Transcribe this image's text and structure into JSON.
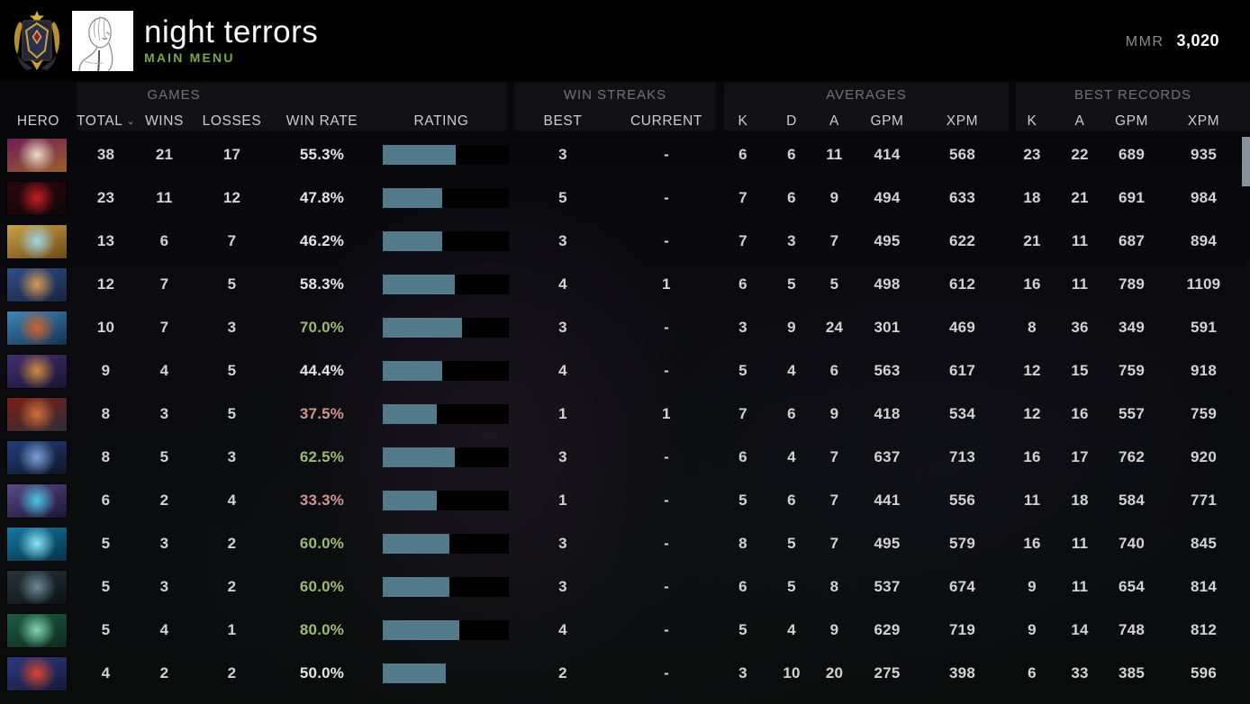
{
  "header": {
    "title": "night terrors",
    "subtitle": "MAIN MENU",
    "mmr_label": "MMR",
    "mmr_value": "3,020"
  },
  "colors": {
    "accent_green": "#78a83e",
    "win_rate_positive": "#9cba77",
    "win_rate_negative": "#cf9490",
    "bar_fill": "#527a8b",
    "bar_background": "#000000",
    "scrollbar": "#87939a"
  },
  "table": {
    "groups": {
      "games": "GAMES",
      "win_streaks": "WIN STREAKS",
      "averages": "AVERAGES",
      "best_records": "BEST RECORDS"
    },
    "columns": {
      "hero": "HERO",
      "total": "TOTAL",
      "wins": "WINS",
      "losses": "LOSSES",
      "win_rate": "WIN RATE",
      "rating": "RATING",
      "best": "BEST",
      "current": "CURRENT",
      "k": "K",
      "d": "D",
      "a": "A",
      "gpm": "GPM",
      "xpm": "XPM",
      "rk": "K",
      "ra": "A",
      "rgpm": "GPM",
      "rxpm": "XPM"
    },
    "sort_column": "total",
    "rows": [
      {
        "portrait": [
          "#e8dcc6",
          "#6f1d57",
          "#9b5f2a"
        ],
        "total": 38,
        "wins": 21,
        "losses": 17,
        "win_rate": "55.3%",
        "wr_class": "neu",
        "rating_pct": 58,
        "bar_bg": true,
        "best": 3,
        "current": "-",
        "k": 6,
        "d": 6,
        "a": 11,
        "gpm": 414,
        "xpm": 568,
        "bk": 23,
        "ba": 22,
        "bgpm": 689,
        "bxpm": 935
      },
      {
        "portrait": [
          "#c41e20",
          "#2a070c",
          "#12060a"
        ],
        "total": 23,
        "wins": 11,
        "losses": 12,
        "win_rate": "47.8%",
        "wr_class": "neu",
        "rating_pct": 47,
        "bar_bg": true,
        "best": 5,
        "current": "-",
        "k": 7,
        "d": 6,
        "a": 9,
        "gpm": 494,
        "xpm": 633,
        "bk": 18,
        "ba": 21,
        "bgpm": 691,
        "bxpm": 984
      },
      {
        "portrait": [
          "#9fd4e8",
          "#caa24a",
          "#6b4a16"
        ],
        "total": 13,
        "wins": 6,
        "losses": 7,
        "win_rate": "46.2%",
        "wr_class": "neu",
        "rating_pct": 47,
        "bar_bg": true,
        "best": 3,
        "current": "-",
        "k": 7,
        "d": 3,
        "a": 7,
        "gpm": 495,
        "xpm": 622,
        "bk": 21,
        "ba": 11,
        "bgpm": 687,
        "bxpm": 894
      },
      {
        "portrait": [
          "#d89a52",
          "#2e4f86",
          "#1b2340"
        ],
        "total": 12,
        "wins": 7,
        "losses": 5,
        "win_rate": "58.3%",
        "wr_class": "neu",
        "rating_pct": 57,
        "bar_bg": true,
        "best": 4,
        "current": 1,
        "k": 6,
        "d": 5,
        "a": 5,
        "gpm": 498,
        "xpm": 612,
        "bk": 16,
        "ba": 11,
        "bgpm": 789,
        "bxpm": 1109
      },
      {
        "portrait": [
          "#d0622a",
          "#3f87b8",
          "#163050"
        ],
        "total": 10,
        "wins": 7,
        "losses": 3,
        "win_rate": "70.0%",
        "wr_class": "pos",
        "rating_pct": 63,
        "bar_bg": true,
        "best": 3,
        "current": "-",
        "k": 3,
        "d": 9,
        "a": 24,
        "gpm": 301,
        "xpm": 469,
        "bk": 8,
        "ba": 36,
        "bgpm": 349,
        "bxpm": 591
      },
      {
        "portrait": [
          "#d08a42",
          "#433070",
          "#181430"
        ],
        "total": 9,
        "wins": 4,
        "losses": 5,
        "win_rate": "44.4%",
        "wr_class": "neu",
        "rating_pct": 47,
        "bar_bg": true,
        "best": 4,
        "current": "-",
        "k": 5,
        "d": 4,
        "a": 6,
        "gpm": 563,
        "xpm": 617,
        "bk": 12,
        "ba": 15,
        "bgpm": 759,
        "bxpm": 918
      },
      {
        "portrait": [
          "#d0703a",
          "#7a1f18",
          "#2e2e36"
        ],
        "total": 8,
        "wins": 3,
        "losses": 5,
        "win_rate": "37.5%",
        "wr_class": "neg",
        "rating_pct": 43,
        "bar_bg": true,
        "best": 1,
        "current": 1,
        "k": 7,
        "d": 6,
        "a": 9,
        "gpm": 418,
        "xpm": 534,
        "bk": 12,
        "ba": 16,
        "bgpm": 557,
        "bxpm": 759
      },
      {
        "portrait": [
          "#7aa2d8",
          "#23407a",
          "#0e1526"
        ],
        "total": 8,
        "wins": 5,
        "losses": 3,
        "win_rate": "62.5%",
        "wr_class": "pos",
        "rating_pct": 57,
        "bar_bg": true,
        "best": 3,
        "current": "-",
        "k": 6,
        "d": 4,
        "a": 7,
        "gpm": 637,
        "xpm": 713,
        "bk": 16,
        "ba": 17,
        "bgpm": 762,
        "bxpm": 920
      },
      {
        "portrait": [
          "#4ac8e8",
          "#5a4a86",
          "#1c1535"
        ],
        "total": 6,
        "wins": 2,
        "losses": 4,
        "win_rate": "33.3%",
        "wr_class": "neg",
        "rating_pct": 43,
        "bar_bg": true,
        "best": 1,
        "current": "-",
        "k": 5,
        "d": 6,
        "a": 7,
        "gpm": 441,
        "xpm": 556,
        "bk": 11,
        "ba": 18,
        "bgpm": 584,
        "bxpm": 771
      },
      {
        "portrait": [
          "#8ae6f5",
          "#1878a2",
          "#063048"
        ],
        "total": 5,
        "wins": 3,
        "losses": 2,
        "win_rate": "60.0%",
        "wr_class": "pos",
        "rating_pct": 53,
        "bar_bg": true,
        "best": 3,
        "current": "-",
        "k": 8,
        "d": 5,
        "a": 7,
        "gpm": 495,
        "xpm": 579,
        "bk": 16,
        "ba": 11,
        "bgpm": 740,
        "bxpm": 845
      },
      {
        "portrait": [
          "#6a8a94",
          "#26343c",
          "#0c1216"
        ],
        "total": 5,
        "wins": 3,
        "losses": 2,
        "win_rate": "60.0%",
        "wr_class": "pos",
        "rating_pct": 53,
        "bar_bg": true,
        "best": 3,
        "current": "-",
        "k": 6,
        "d": 5,
        "a": 8,
        "gpm": 537,
        "xpm": 674,
        "bk": 9,
        "ba": 11,
        "bgpm": 654,
        "bxpm": 814
      },
      {
        "portrait": [
          "#7ed8ae",
          "#1f5a44",
          "#0e2a20"
        ],
        "total": 5,
        "wins": 4,
        "losses": 1,
        "win_rate": "80.0%",
        "wr_class": "pos",
        "rating_pct": 61,
        "bar_bg": true,
        "best": 4,
        "current": "-",
        "k": 5,
        "d": 4,
        "a": 9,
        "gpm": 629,
        "xpm": 719,
        "bk": 9,
        "ba": 14,
        "bgpm": 748,
        "bxpm": 812
      },
      {
        "portrait": [
          "#d8452e",
          "#2e3a80",
          "#141a38"
        ],
        "total": 4,
        "wins": 2,
        "losses": 2,
        "win_rate": "50.0%",
        "wr_class": "neu",
        "rating_pct": 50,
        "bar_bg": false,
        "best": 2,
        "current": "-",
        "k": 3,
        "d": 10,
        "a": 20,
        "gpm": 275,
        "xpm": 398,
        "bk": 6,
        "ba": 33,
        "bgpm": 385,
        "bxpm": 596
      }
    ]
  }
}
